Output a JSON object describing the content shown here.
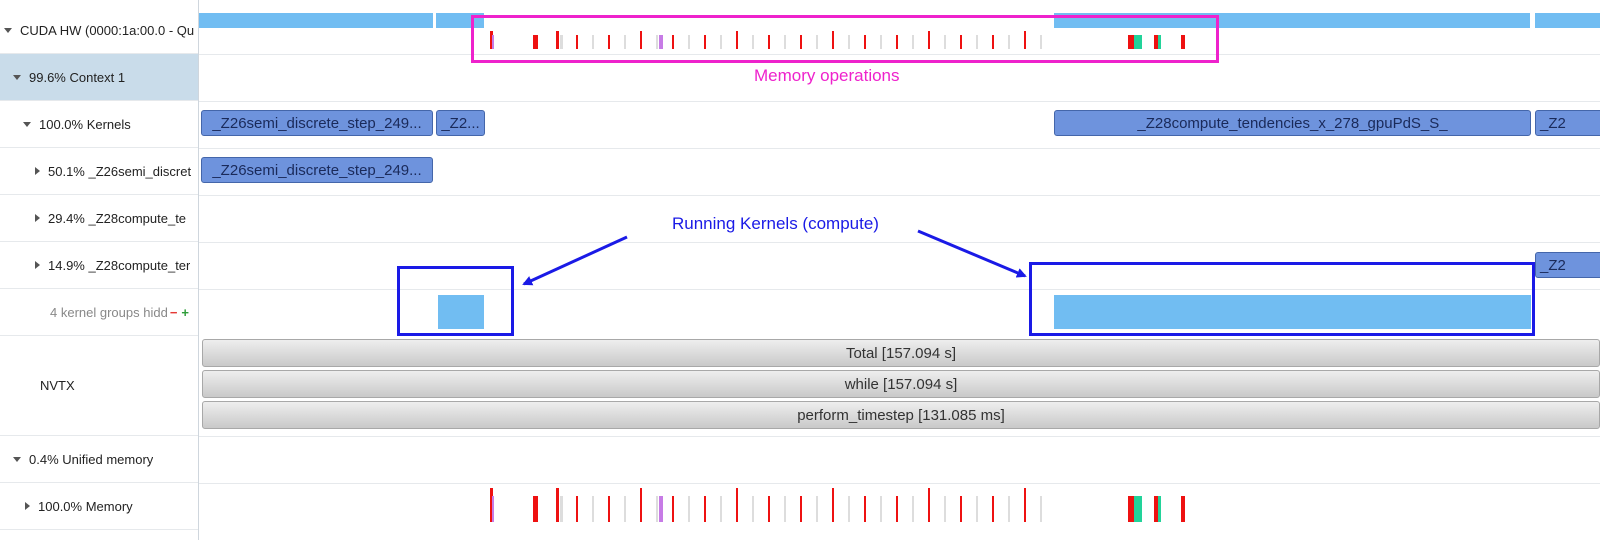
{
  "tree": {
    "cuda_hw": "CUDA HW (0000:1a:00.0 - Qu",
    "context": "99.6% Context 1",
    "kernels": "100.0% Kernels",
    "k1": "50.1% _Z26semi_discret",
    "k2": "29.4% _Z28compute_te",
    "k3": "14.9% _Z28compute_ter",
    "hidden": "4 kernel groups hidd",
    "minus": "−",
    "plus": "+",
    "nvtx": "NVTX",
    "unified": "0.4% Unified memory",
    "memory": "100.0% Memory"
  },
  "kernels": {
    "semi_long": "_Z26semi_discrete_step_249...",
    "semi_short": "_Z2...",
    "compute": "_Z28compute_tendencies_x_278_gpuPdS_S_",
    "edge": "_Z2"
  },
  "nvtx": {
    "total": "Total [157.094 s]",
    "while": "while [157.094 s]",
    "step": "perform_timestep [131.085 ms]"
  },
  "annotations": {
    "memory_ops": "Memory operations",
    "running": "Running Kernels (compute)"
  },
  "colors": {
    "memory_annotation": "#ee22cc",
    "running_annotation": "#1a1ae6",
    "kernel_fill": "#6e93dd",
    "activity_fill": "#71bdf2",
    "memcpy_red": "#ee1111",
    "memcpy_green": "#22d39a",
    "memcpy_purple": "#c77be6",
    "memcpy_gray": "#dddddd"
  }
}
